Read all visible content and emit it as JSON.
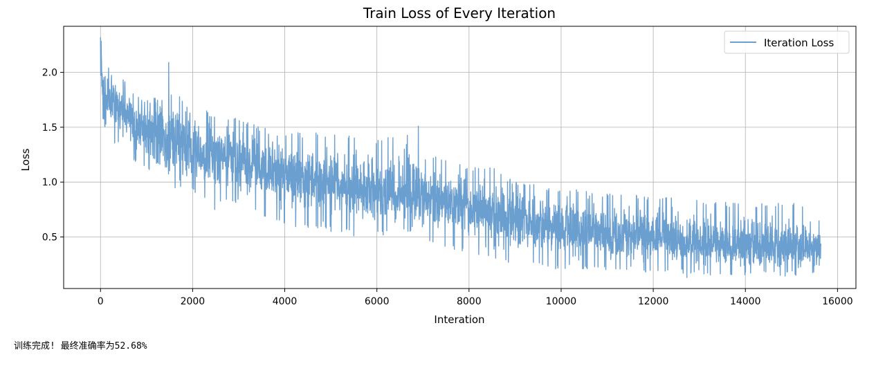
{
  "chart_data": {
    "type": "line",
    "title": "Train Loss of Every Iteration",
    "xlabel": "Interation",
    "ylabel": "Loss",
    "xlim": [
      -800,
      16400
    ],
    "ylim": [
      0.03,
      2.42
    ],
    "grid": true,
    "x_ticks": [
      0,
      2000,
      4000,
      6000,
      8000,
      10000,
      12000,
      14000,
      16000
    ],
    "y_ticks": [
      0.5,
      1.0,
      1.5,
      2.0
    ],
    "x_tick_labels": [
      "0",
      "2000",
      "4000",
      "6000",
      "8000",
      "10000",
      "12000",
      "14000",
      "16000"
    ],
    "y_tick_labels": [
      "0.5",
      "1.0",
      "1.5",
      "2.0"
    ],
    "legend": {
      "position": "top-right",
      "entries": [
        "Iteration Loss"
      ]
    },
    "series": [
      {
        "name": "Iteration Loss",
        "color": "#6b9fcf",
        "x_start": 0,
        "x_end": 15640,
        "envelope": {
          "x": [
            0,
            50,
            100,
            300,
            700,
            1000,
            1500,
            2000,
            2500,
            3000,
            3500,
            4000,
            5000,
            6000,
            6900,
            7100,
            8000,
            8500,
            9000,
            10000,
            11000,
            12000,
            13000,
            14000,
            15000,
            15640
          ],
          "upper": [
            2.32,
            2.25,
            2.1,
            2.05,
            1.85,
            1.75,
            1.8,
            1.75,
            1.6,
            1.6,
            1.5,
            1.45,
            1.45,
            1.38,
            1.5,
            1.25,
            1.15,
            1.15,
            1.0,
            0.95,
            0.9,
            0.88,
            0.85,
            0.8,
            0.82,
            0.76
          ],
          "lower": [
            1.7,
            1.55,
            1.5,
            1.35,
            1.2,
            1.1,
            0.95,
            0.9,
            0.8,
            0.8,
            0.7,
            0.6,
            0.55,
            0.5,
            0.55,
            0.45,
            0.35,
            0.28,
            0.25,
            0.2,
            0.2,
            0.17,
            0.15,
            0.14,
            0.14,
            0.17
          ]
        },
        "center_trend": {
          "x": [
            0,
            100,
            1000,
            2000,
            3000,
            4000,
            5000,
            6000,
            7000,
            8000,
            9000,
            10000,
            11000,
            12000,
            13000,
            14000,
            15000,
            15640
          ],
          "y": [
            1.95,
            1.75,
            1.5,
            1.3,
            1.2,
            1.1,
            0.98,
            0.9,
            0.85,
            0.75,
            0.65,
            0.58,
            0.52,
            0.48,
            0.45,
            0.42,
            0.4,
            0.38
          ]
        },
        "notable_spikes": [
          {
            "x": 0,
            "y": 2.32
          },
          {
            "x": 1480,
            "y": 2.09
          },
          {
            "x": 6900,
            "y": 1.51
          },
          {
            "x": 2480,
            "y": 0.75
          },
          {
            "x": 5500,
            "y": 0.51
          },
          {
            "x": 12730,
            "y": 0.13
          }
        ]
      }
    ]
  },
  "status_message": "训练完成! 最终准确率为52.68%"
}
